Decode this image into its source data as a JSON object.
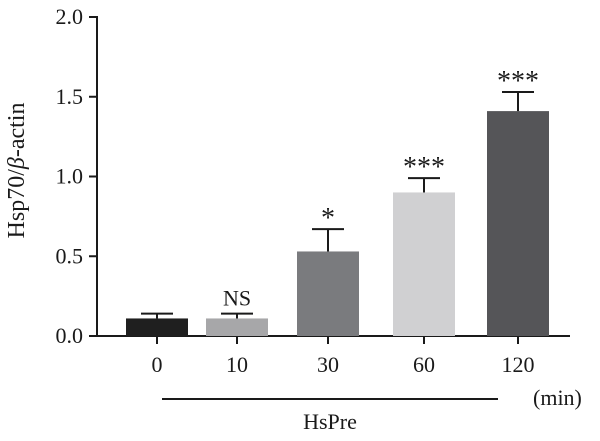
{
  "chart_data": {
    "type": "bar",
    "categories": [
      "0",
      "10",
      "30",
      "60",
      "120"
    ],
    "values": [
      0.11,
      0.11,
      0.53,
      0.9,
      1.41
    ],
    "errors": [
      0.03,
      0.03,
      0.14,
      0.09,
      0.12
    ],
    "significance": [
      "",
      "NS",
      "*",
      "***",
      "***"
    ],
    "bar_colors": [
      "#1f1f1f",
      "#a7a7a9",
      "#7a7b7e",
      "#d0d0d2",
      "#555558"
    ],
    "ylabel_main": "Hsp70/",
    "ylabel_greek": "β",
    "ylabel_tail": "-actin",
    "ylim": [
      0,
      2.0
    ],
    "yticks": [
      "0.0",
      "0.5",
      "1.0",
      "1.5",
      "2.0"
    ],
    "x_unit": "(min)",
    "group_label": "HsPre",
    "grid": false
  }
}
